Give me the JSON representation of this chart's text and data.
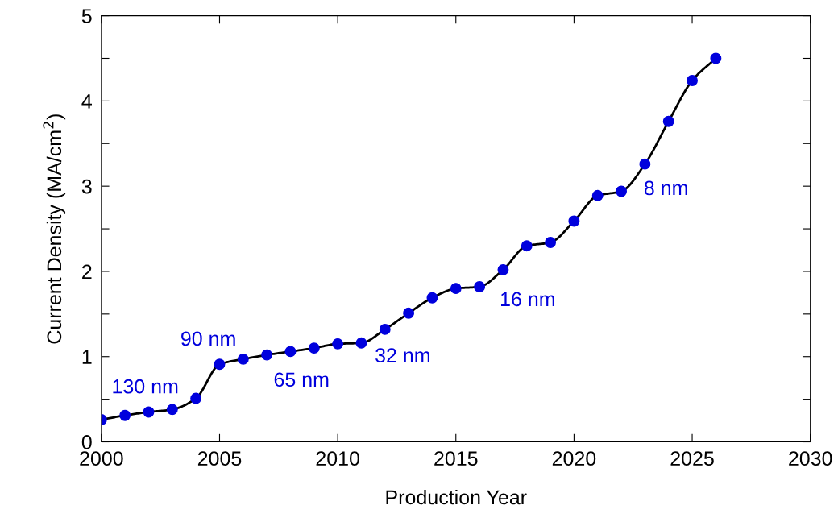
{
  "chart_data": {
    "type": "line",
    "xlabel": "Production Year",
    "ylabel": "Current Density (MA/cm$^{2}$)",
    "x": [
      2000,
      2001,
      2002,
      2003,
      2004,
      2005,
      2006,
      2007,
      2008,
      2009,
      2010,
      2011,
      2012,
      2013,
      2014,
      2015,
      2016,
      2017,
      2018,
      2019,
      2020,
      2021,
      2022,
      2023,
      2024,
      2025,
      2026
    ],
    "series": [
      {
        "color": "#0000dd",
        "values": [
          0.26,
          0.31,
          0.35,
          0.38,
          0.51,
          0.91,
          0.97,
          1.02,
          1.06,
          1.1,
          1.15,
          1.16,
          1.32,
          1.51,
          1.69,
          1.8,
          1.82,
          2.02,
          2.3,
          2.34,
          2.59,
          2.89,
          2.94,
          3.26,
          3.76,
          4.24,
          4.5
        ]
      }
    ],
    "marker": "circle",
    "line_style": "solid",
    "grid": false,
    "legend": false,
    "xlim": [
      2000,
      2030
    ],
    "xticks": [
      2000,
      2005,
      2010,
      2015,
      2020,
      2025,
      2030
    ],
    "ylim": [
      0,
      5
    ],
    "yticks": [
      0,
      {
        "value": 0.5,
        "label": null
      },
      1,
      {
        "value": 1.5,
        "label": null
      },
      2,
      {
        "value": 2.5,
        "label": null
      },
      3,
      {
        "value": 3.5,
        "label": null
      },
      4,
      {
        "value": 4.5,
        "label": null
      },
      5
    ],
    "annotations": [
      {
        "text": "130 nm",
        "x": 2001,
        "y": 0.31
      },
      {
        "text": "90 nm",
        "x": 2005,
        "y": 0.91
      },
      {
        "text": "65 nm",
        "x": 2007,
        "y": 1.02
      },
      {
        "text": "32 nm",
        "x": 2011,
        "y": 1.16
      },
      {
        "text": "16 nm",
        "x": 2016,
        "y": 1.82
      },
      {
        "text": "8 nm",
        "x": 2022,
        "y": 2.94
      }
    ]
  }
}
